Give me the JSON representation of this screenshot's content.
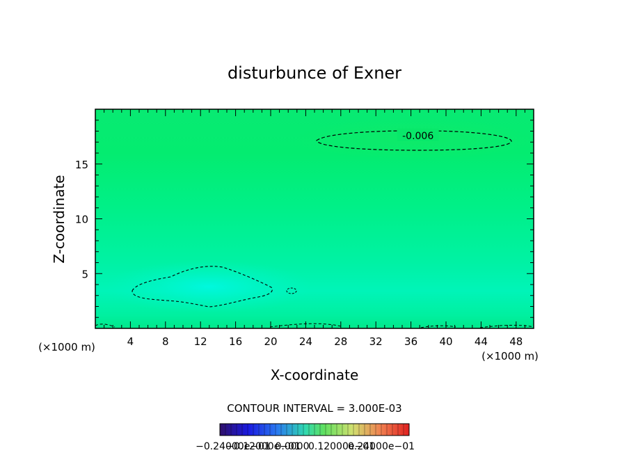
{
  "chart_data": {
    "type": "heatmap",
    "title": "disturbunce of Exner",
    "xlabel": "X-coordinate",
    "ylabel": "Z-coordinate",
    "x_unit_left": "(×1000 m)",
    "x_unit_right": "(×1000 m)",
    "xlim": [
      0,
      50
    ],
    "ylim": [
      0,
      20
    ],
    "x_ticks": [
      4,
      8,
      12,
      16,
      20,
      24,
      28,
      32,
      36,
      40,
      44,
      48
    ],
    "y_ticks": [
      5,
      10,
      15
    ],
    "contour_interval_text": "CONTOUR INTERVAL = 3.000E-03",
    "contour_labels": [
      {
        "text": "-0.006",
        "x": 36.8,
        "z": 17.6
      }
    ],
    "colorbar": {
      "range": [
        -0.024,
        0.024
      ],
      "tick_labels": [
        "−0.24000e−01",
        "−0.12000e−01",
        "0.0000",
        "0.12000e−01",
        "0.24000e−01"
      ]
    },
    "colors": {
      "field_base": "#00ee7a",
      "field_low": "#00f5c8",
      "field_high": "#08e86a"
    },
    "grid": false
  }
}
